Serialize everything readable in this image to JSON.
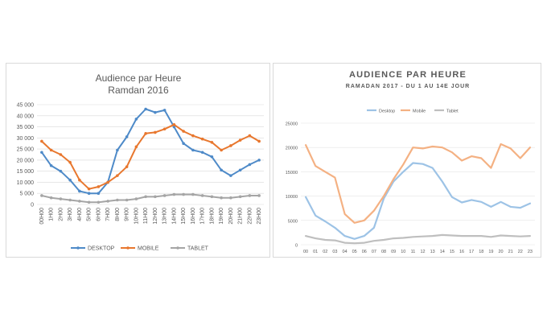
{
  "chart_data": [
    {
      "type": "line",
      "title": "Audience par Heure",
      "subtitle": "Ramdan 2016",
      "categories": [
        "00H00",
        "1H00",
        "2H00",
        "3H00",
        "4H00",
        "5H00",
        "6H00",
        "7H00",
        "8H00",
        "9H00",
        "10H00",
        "11H00",
        "12H00",
        "13H00",
        "14H00",
        "15H00",
        "16H00",
        "17H00",
        "18H00",
        "19H00",
        "20H00",
        "21H00",
        "22H00",
        "23H00"
      ],
      "ylim": [
        0,
        45000
      ],
      "yticks": [
        0,
        5000,
        10000,
        15000,
        20000,
        25000,
        30000,
        35000,
        40000,
        45000
      ],
      "ytick_labels": [
        "0",
        "5 000",
        "10 000",
        "15 000",
        "20 000",
        "25 000",
        "30 000",
        "35 000",
        "40 000",
        "45 000"
      ],
      "grid": true,
      "legend_position": "bottom",
      "series": [
        {
          "name": "DESKTOP",
          "color": "#4e8ac8",
          "values": [
            23500,
            17500,
            15000,
            11000,
            6000,
            5000,
            5000,
            10000,
            24500,
            30500,
            38500,
            43000,
            41500,
            42500,
            35000,
            27500,
            24500,
            23500,
            21500,
            15500,
            13000,
            15500,
            18000,
            20000
          ]
        },
        {
          "name": "MOBILE",
          "color": "#e8772e",
          "values": [
            28500,
            24500,
            22500,
            19000,
            11000,
            7000,
            8000,
            10000,
            13000,
            17000,
            26000,
            32000,
            32500,
            34000,
            36000,
            33000,
            31000,
            29500,
            28000,
            24500,
            26500,
            29000,
            31000,
            28500
          ]
        },
        {
          "name": "TABLET",
          "color": "#a5a5a5",
          "values": [
            4000,
            3000,
            2500,
            2000,
            1500,
            1000,
            1000,
            1500,
            2000,
            2000,
            2500,
            3500,
            3500,
            4000,
            4500,
            4500,
            4500,
            4000,
            3500,
            3000,
            3000,
            3500,
            4000,
            4000
          ]
        }
      ]
    },
    {
      "type": "line",
      "title": "AUDIENCE PAR HEURE",
      "subtitle": "RAMADAN 2017 - DU 1 AU 14E JOUR",
      "categories": [
        "00",
        "01",
        "02",
        "03",
        "04",
        "05",
        "06",
        "07",
        "08",
        "09",
        "10",
        "11",
        "12",
        "13",
        "14",
        "15",
        "16",
        "17",
        "18",
        "19",
        "20",
        "21",
        "22",
        "23"
      ],
      "ylim": [
        0,
        25000
      ],
      "yticks": [
        0,
        5000,
        10000,
        15000,
        20000,
        25000
      ],
      "ytick_labels": [
        "0",
        "5000",
        "10000",
        "15000",
        "20000",
        "25000"
      ],
      "grid": true,
      "legend_position": "top",
      "series": [
        {
          "name": "Desktop",
          "color": "#9dc3e6",
          "values": [
            9800,
            6000,
            4800,
            3500,
            1800,
            1200,
            1800,
            3500,
            9500,
            13000,
            15000,
            16800,
            16600,
            15800,
            13000,
            9800,
            8700,
            9200,
            8800,
            7800,
            8800,
            7800,
            7600,
            8500
          ]
        },
        {
          "name": "Mobile",
          "color": "#f4b183",
          "values": [
            20500,
            16200,
            15000,
            13800,
            6300,
            4500,
            5000,
            7000,
            10000,
            13500,
            16500,
            20000,
            19800,
            20200,
            20000,
            19000,
            17300,
            18200,
            17800,
            15800,
            20700,
            19800,
            17800,
            20000
          ]
        },
        {
          "name": "Tablet",
          "color": "#bfbfbf",
          "values": [
            1800,
            1300,
            1000,
            900,
            400,
            300,
            400,
            800,
            1000,
            1300,
            1400,
            1600,
            1700,
            1800,
            2000,
            1900,
            1800,
            1800,
            1800,
            1600,
            1900,
            1800,
            1700,
            1800
          ]
        }
      ]
    }
  ]
}
